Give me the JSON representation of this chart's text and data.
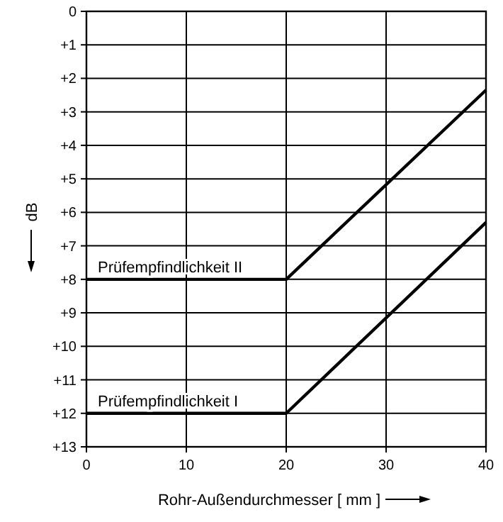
{
  "chart_data": {
    "type": "line",
    "xlabel": "Rohr-Außendurchmesser [ mm ]",
    "ylabel": "dB",
    "xlim": [
      0,
      40
    ],
    "xticks": [
      0,
      10,
      20,
      30,
      40
    ],
    "ylim": [
      13,
      0
    ],
    "yticks": [
      0,
      {
        "value": 1,
        "label": "+1"
      },
      {
        "value": 2,
        "label": "+2"
      },
      {
        "value": 3,
        "label": "+3"
      },
      {
        "value": 4,
        "label": "+4"
      },
      {
        "value": 5,
        "label": "+5"
      },
      {
        "value": 6,
        "label": "+6"
      },
      {
        "value": 7,
        "label": "+7"
      },
      {
        "value": 8,
        "label": "+8"
      },
      {
        "value": 9,
        "label": "+9"
      },
      {
        "value": 10,
        "label": "+10"
      },
      {
        "value": 11,
        "label": "+11"
      },
      {
        "value": 12,
        "label": "+12"
      },
      {
        "value": 13,
        "label": "+13"
      }
    ],
    "grid": true,
    "marker": "none",
    "line_style": "solid",
    "series": [
      {
        "name": "Prüfempfindlichkeit II",
        "color": "#000000",
        "x": [
          0,
          20,
          40
        ],
        "values": [
          8,
          8,
          2.35
        ]
      },
      {
        "name": "Prüfempfindlichkeit I",
        "color": "#000000",
        "x": [
          0,
          20,
          40
        ],
        "values": [
          12,
          12,
          6.3
        ]
      }
    ]
  }
}
